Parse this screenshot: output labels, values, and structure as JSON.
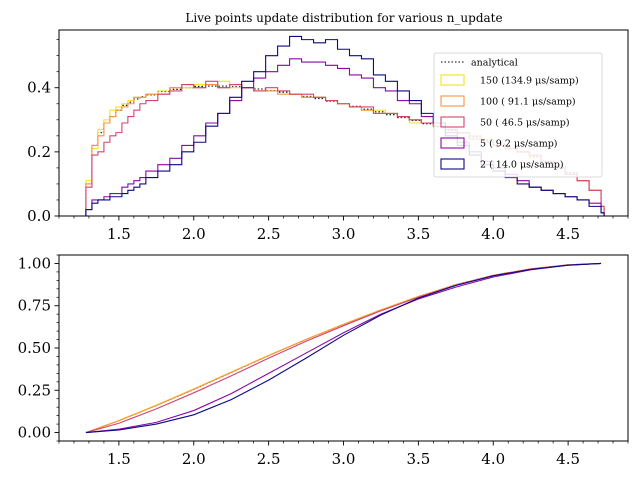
{
  "chart_data": [
    {
      "type": "line",
      "step": true,
      "title": "Live points update distribution for various n_update",
      "xlabel": "",
      "ylabel": "",
      "xlim": [
        1.1,
        4.9
      ],
      "ylim": [
        0.0,
        0.58
      ],
      "xticks": [
        "1.5",
        "2.0",
        "2.5",
        "3.0",
        "3.5",
        "4.0",
        "4.5"
      ],
      "yticks": [
        "0.0",
        "0.2",
        "0.4"
      ],
      "legend_position": "upper right",
      "x": [
        1.28,
        1.32,
        1.36,
        1.4,
        1.44,
        1.48,
        1.52,
        1.56,
        1.6,
        1.64,
        1.68,
        1.76,
        1.84,
        1.92,
        2.0,
        2.08,
        2.16,
        2.24,
        2.32,
        2.4,
        2.48,
        2.56,
        2.64,
        2.72,
        2.8,
        2.88,
        2.96,
        3.04,
        3.12,
        3.2,
        3.28,
        3.36,
        3.44,
        3.52,
        3.6,
        3.68,
        3.76,
        3.84,
        3.92,
        4.0,
        4.08,
        4.16,
        4.24,
        4.32,
        4.4,
        4.48,
        4.56,
        4.64,
        4.72
      ],
      "series": [
        {
          "name": "analytical",
          "color": "#000000",
          "dash": "dotted",
          "values": [
            0.1,
            0.22,
            0.26,
            0.29,
            0.31,
            0.33,
            0.345,
            0.355,
            0.365,
            0.372,
            0.378,
            0.388,
            0.395,
            0.4,
            0.404,
            0.405,
            0.405,
            0.403,
            0.4,
            0.396,
            0.391,
            0.386,
            0.38,
            0.373,
            0.366,
            0.358,
            0.35,
            0.342,
            0.333,
            0.325,
            0.316,
            0.307,
            0.298,
            0.288,
            0.278,
            0.268,
            0.258,
            0.247,
            0.236,
            0.224,
            0.212,
            0.199,
            0.185,
            0.17,
            0.153,
            0.135,
            0.11,
            0.08,
            0.03
          ]
        },
        {
          "name": "150  (134.9 μs/samp)",
          "color": "#f2e51c",
          "dash": "solid",
          "values": [
            0.11,
            0.21,
            0.27,
            0.3,
            0.33,
            0.34,
            0.35,
            0.36,
            0.37,
            0.37,
            0.38,
            0.39,
            0.4,
            0.4,
            0.41,
            0.41,
            0.42,
            0.4,
            0.4,
            0.39,
            0.39,
            0.39,
            0.38,
            0.37,
            0.37,
            0.36,
            0.35,
            0.34,
            0.33,
            0.33,
            0.32,
            0.31,
            0.29,
            0.29,
            0.28,
            0.27,
            0.26,
            0.25,
            0.24,
            0.22,
            0.21,
            0.2,
            0.18,
            0.17,
            0.15,
            0.13,
            0.11,
            0.08,
            0.03
          ]
        },
        {
          "name": "100  ( 91.1 μs/samp)",
          "color": "#f79444",
          "dash": "solid",
          "values": [
            0.1,
            0.22,
            0.25,
            0.29,
            0.31,
            0.33,
            0.34,
            0.35,
            0.37,
            0.37,
            0.38,
            0.38,
            0.4,
            0.41,
            0.4,
            0.41,
            0.4,
            0.41,
            0.4,
            0.39,
            0.39,
            0.38,
            0.38,
            0.37,
            0.37,
            0.36,
            0.35,
            0.34,
            0.33,
            0.32,
            0.32,
            0.31,
            0.3,
            0.29,
            0.28,
            0.27,
            0.26,
            0.25,
            0.23,
            0.22,
            0.21,
            0.2,
            0.19,
            0.17,
            0.15,
            0.13,
            0.11,
            0.08,
            0.03
          ]
        },
        {
          "name": "50  ( 46.5 μs/samp)",
          "color": "#d6446d",
          "dash": "solid",
          "values": [
            0.09,
            0.19,
            0.2,
            0.23,
            0.25,
            0.26,
            0.29,
            0.31,
            0.33,
            0.35,
            0.36,
            0.38,
            0.39,
            0.41,
            0.4,
            0.42,
            0.4,
            0.41,
            0.4,
            0.39,
            0.4,
            0.39,
            0.38,
            0.38,
            0.37,
            0.36,
            0.35,
            0.34,
            0.34,
            0.32,
            0.32,
            0.31,
            0.3,
            0.29,
            0.28,
            0.27,
            0.26,
            0.24,
            0.23,
            0.22,
            0.21,
            0.2,
            0.19,
            0.17,
            0.15,
            0.13,
            0.11,
            0.08,
            0.03
          ]
        },
        {
          "name": "5  (  9.2 μs/samp)",
          "color": "#8a09a5",
          "dash": "solid",
          "values": [
            0.02,
            0.05,
            0.05,
            0.06,
            0.07,
            0.07,
            0.09,
            0.1,
            0.11,
            0.12,
            0.14,
            0.16,
            0.18,
            0.22,
            0.25,
            0.29,
            0.32,
            0.36,
            0.4,
            0.43,
            0.45,
            0.47,
            0.49,
            0.48,
            0.48,
            0.47,
            0.46,
            0.44,
            0.43,
            0.4,
            0.39,
            0.36,
            0.35,
            0.31,
            0.29,
            0.26,
            0.23,
            0.2,
            0.17,
            0.15,
            0.13,
            0.11,
            0.09,
            0.08,
            0.07,
            0.06,
            0.05,
            0.04,
            0.01
          ]
        },
        {
          "name": "2  ( 14.0 μs/samp)",
          "color": "#0d0887",
          "dash": "solid",
          "values": [
            0.02,
            0.04,
            0.05,
            0.05,
            0.06,
            0.06,
            0.07,
            0.08,
            0.09,
            0.1,
            0.12,
            0.14,
            0.16,
            0.2,
            0.23,
            0.28,
            0.32,
            0.37,
            0.42,
            0.45,
            0.5,
            0.53,
            0.56,
            0.55,
            0.54,
            0.55,
            0.52,
            0.5,
            0.49,
            0.44,
            0.42,
            0.39,
            0.36,
            0.32,
            0.29,
            0.25,
            0.22,
            0.19,
            0.16,
            0.14,
            0.12,
            0.1,
            0.09,
            0.08,
            0.07,
            0.06,
            0.05,
            0.03,
            0.01
          ]
        }
      ]
    },
    {
      "type": "line",
      "title": "",
      "xlabel": "",
      "ylabel": "",
      "xlim": [
        1.1,
        4.9
      ],
      "ylim": [
        -0.05,
        1.05
      ],
      "xticks": [
        "1.5",
        "2.0",
        "2.5",
        "3.0",
        "3.5",
        "4.0",
        "4.5"
      ],
      "yticks": [
        "0.00",
        "0.25",
        "0.50",
        "0.75",
        "1.00"
      ],
      "x": [
        1.28,
        1.5,
        1.75,
        2.0,
        2.25,
        2.5,
        2.75,
        3.0,
        3.25,
        3.5,
        3.75,
        4.0,
        4.25,
        4.5,
        4.72
      ],
      "series": [
        {
          "name": "",
          "color": "#000000",
          "dash": "dotted",
          "values": [
            0.0,
            0.07,
            0.16,
            0.255,
            0.355,
            0.455,
            0.55,
            0.64,
            0.725,
            0.805,
            0.875,
            0.93,
            0.968,
            0.992,
            1.0
          ]
        },
        {
          "name": "",
          "color": "#f2e51c",
          "dash": "solid",
          "values": [
            0.0,
            0.072,
            0.163,
            0.258,
            0.358,
            0.457,
            0.551,
            0.641,
            0.726,
            0.805,
            0.874,
            0.929,
            0.967,
            0.991,
            1.0
          ]
        },
        {
          "name": "",
          "color": "#f79444",
          "dash": "solid",
          "values": [
            0.0,
            0.07,
            0.16,
            0.256,
            0.356,
            0.455,
            0.55,
            0.64,
            0.725,
            0.804,
            0.874,
            0.93,
            0.968,
            0.992,
            1.0
          ]
        },
        {
          "name": "",
          "color": "#d6446d",
          "dash": "solid",
          "values": [
            0.0,
            0.055,
            0.14,
            0.235,
            0.335,
            0.44,
            0.54,
            0.632,
            0.72,
            0.8,
            0.872,
            0.928,
            0.967,
            0.991,
            1.0
          ]
        },
        {
          "name": "",
          "color": "#8a09a5",
          "dash": "solid",
          "values": [
            0.0,
            0.02,
            0.06,
            0.13,
            0.23,
            0.35,
            0.47,
            0.59,
            0.7,
            0.79,
            0.86,
            0.92,
            0.962,
            0.99,
            1.0
          ]
        },
        {
          "name": "",
          "color": "#0d0887",
          "dash": "solid",
          "values": [
            0.0,
            0.015,
            0.05,
            0.105,
            0.195,
            0.31,
            0.44,
            0.575,
            0.695,
            0.795,
            0.87,
            0.927,
            0.965,
            0.99,
            1.0
          ]
        }
      ]
    }
  ]
}
